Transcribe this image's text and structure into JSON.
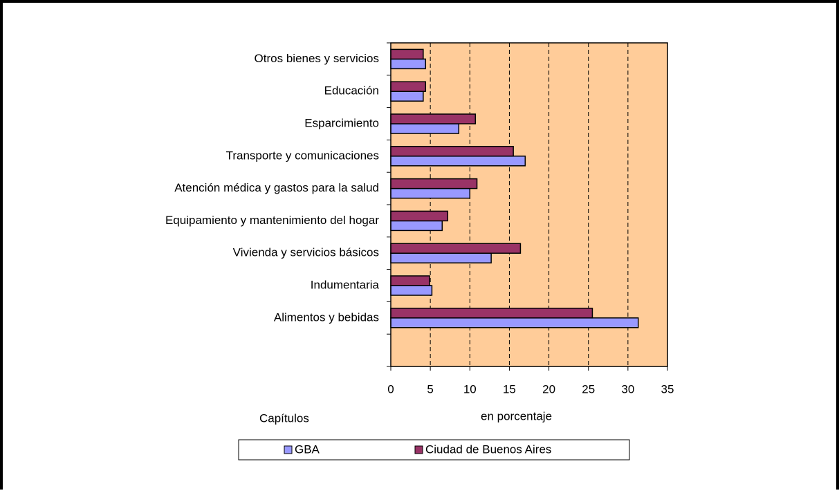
{
  "chart_data": {
    "type": "hbar",
    "y_label": "Capítulos",
    "x_label": "en porcentaje",
    "categories": [
      "Otros bienes y servicios",
      "Educación",
      "Esparcimiento",
      "Transporte y comunicaciones",
      "Atención médica y gastos para la salud",
      "Equipamiento y mantenimiento del hogar",
      "Vivienda y servicios básicos",
      "Indumentaria",
      "Alimentos y bebidas",
      null
    ],
    "series": [
      {
        "name": "GBA",
        "color": "#9999ff",
        "values": [
          4.4,
          4.1,
          8.6,
          17.0,
          10.0,
          6.5,
          12.7,
          5.2,
          31.3,
          null
        ]
      },
      {
        "name": "Ciudad de Buenos Aires",
        "color": "#993366",
        "values": [
          4.1,
          4.4,
          10.7,
          15.5,
          10.9,
          7.2,
          16.4,
          4.9,
          25.5,
          null
        ]
      }
    ],
    "xlim": [
      0,
      35
    ],
    "xticks": [
      0,
      5,
      10,
      15,
      20,
      25,
      30,
      35
    ],
    "grid": true,
    "background": "#ffcc99",
    "legend": "bottom"
  }
}
